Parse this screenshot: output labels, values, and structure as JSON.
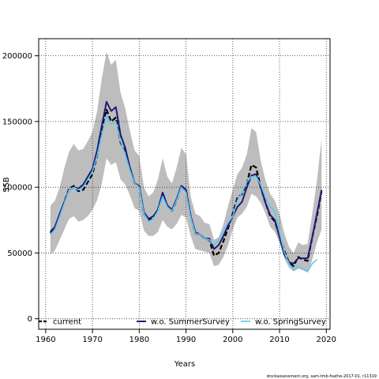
{
  "chart_data": {
    "type": "line",
    "xlabel": "Years",
    "ylabel": "SSB",
    "xlim": [
      1958.5,
      2020.8
    ],
    "ylim": [
      -8000,
      213000
    ],
    "x_ticks": [
      1960,
      1970,
      1980,
      1990,
      2000,
      2010,
      2020
    ],
    "y_ticks": [
      0,
      50000,
      100000,
      150000,
      200000
    ],
    "grid": "dotted",
    "legend_position": "bottom",
    "footnote": "stockassessment.org, sam-tmb-fsathe-2017-01, r11319",
    "years": [
      1961,
      1962,
      1963,
      1964,
      1965,
      1966,
      1967,
      1968,
      1969,
      1970,
      1971,
      1972,
      1973,
      1974,
      1975,
      1976,
      1977,
      1978,
      1979,
      1980,
      1981,
      1982,
      1983,
      1984,
      1985,
      1986,
      1987,
      1988,
      1989,
      1990,
      1991,
      1992,
      1993,
      1994,
      1995,
      1996,
      1997,
      1998,
      1999,
      2000,
      2001,
      2002,
      2003,
      2004,
      2005,
      2006,
      2007,
      2008,
      2009,
      2010,
      2011,
      2012,
      2013,
      2014,
      2015,
      2016,
      2017,
      2018,
      2019
    ],
    "confidence_band": {
      "upper": [
        86000,
        90000,
        100000,
        115000,
        127000,
        133000,
        128000,
        129000,
        135000,
        142000,
        158000,
        183000,
        203000,
        193000,
        197000,
        172000,
        160000,
        143000,
        128000,
        124000,
        100000,
        93000,
        96000,
        106000,
        122000,
        108000,
        103000,
        115000,
        130000,
        125000,
        93000,
        80000,
        78000,
        73000,
        72000,
        60000,
        62000,
        72000,
        86000,
        98000,
        110000,
        115000,
        125000,
        145000,
        142000,
        120000,
        105000,
        95000,
        90000,
        80000,
        65000,
        55000,
        50000,
        58000,
        56000,
        57000,
        80000,
        105000,
        137000
      ],
      "lower": [
        49000,
        52000,
        60000,
        68000,
        76000,
        78000,
        74000,
        75000,
        78000,
        83000,
        90000,
        103000,
        122000,
        117000,
        119000,
        106000,
        102000,
        94000,
        84000,
        82000,
        67000,
        63000,
        63000,
        66000,
        75000,
        70000,
        68000,
        72000,
        79000,
        77000,
        63000,
        53000,
        52000,
        51000,
        50000,
        40000,
        41000,
        47000,
        56000,
        68000,
        77000,
        80000,
        85000,
        95000,
        93000,
        88000,
        80000,
        70000,
        66000,
        58000,
        46000,
        39000,
        36000,
        38000,
        37000,
        35000,
        45000,
        58000,
        68000
      ]
    },
    "series": [
      {
        "name": "current",
        "color": "#000000",
        "dash": "dashed",
        "values": [
          66000,
          70000,
          79000,
          89000,
          99000,
          101000,
          97000,
          98000,
          104000,
          110000,
          124000,
          143000,
          159000,
          150000,
          153000,
          134000,
          127000,
          115000,
          103000,
          101000,
          80000,
          75000,
          77000,
          83000,
          95000,
          86000,
          82000,
          90000,
          101000,
          98000,
          78000,
          65000,
          64000,
          61000,
          60000,
          48000,
          50000,
          59000,
          69000,
          80000,
          92000,
          95000,
          103000,
          117000,
          115000,
          100000,
          88000,
          78000,
          74000,
          63000,
          52000,
          43000,
          40000,
          47000,
          45000,
          44000,
          62000,
          78000,
          97000
        ]
      },
      {
        "name": "w.o. SummerSurvey",
        "color": "#241877",
        "dash": "solid",
        "values": [
          65000,
          70000,
          80000,
          89000,
          98000,
          100000,
          99000,
          102000,
          108000,
          114000,
          128000,
          147000,
          165000,
          158000,
          161000,
          140000,
          130000,
          115000,
          103000,
          101000,
          81000,
          76000,
          78000,
          83000,
          96000,
          86000,
          83000,
          91000,
          101000,
          98000,
          78000,
          66000,
          64000,
          61000,
          61000,
          53000,
          56000,
          63000,
          71000,
          78000,
          85000,
          89000,
          100000,
          109000,
          110000,
          100000,
          88000,
          79000,
          75000,
          62000,
          49000,
          43000,
          42000,
          46000,
          46000,
          46000,
          62000,
          80000,
          98000
        ]
      },
      {
        "name": "w.o. SpringSurvey",
        "color": "#5bc8f0",
        "dash": "solid",
        "values": [
          64000,
          68000,
          78000,
          88000,
          98000,
          100000,
          98000,
          100000,
          106000,
          112000,
          124000,
          140000,
          155000,
          148000,
          150000,
          135000,
          125000,
          113000,
          103000,
          100000,
          80000,
          74000,
          76000,
          82000,
          93000,
          85000,
          82000,
          90000,
          100000,
          96000,
          77000,
          65000,
          64000,
          61000,
          60000,
          56000,
          60000,
          67000,
          73000,
          78000,
          90000,
          96000,
          104000,
          108000,
          108000,
          102000,
          92000,
          85000,
          82000,
          66000,
          51000,
          42000,
          37000,
          40000,
          38000,
          36000,
          42000,
          45000,
          null
        ]
      }
    ]
  }
}
